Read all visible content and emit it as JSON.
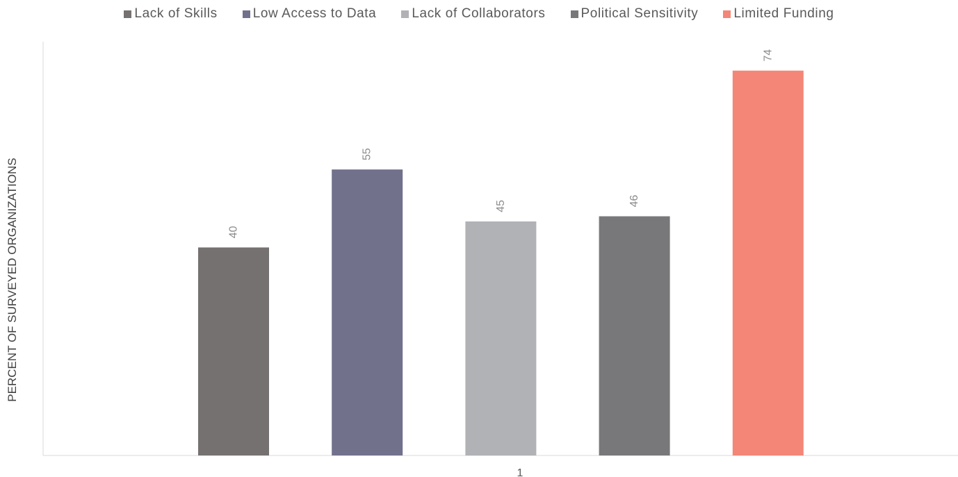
{
  "chart_data": {
    "type": "bar",
    "categories": [
      "1"
    ],
    "series": [
      {
        "name": "Lack of Skills",
        "values": [
          40
        ],
        "color": "#757170"
      },
      {
        "name": "Low Access to Data",
        "values": [
          55
        ],
        "color": "#72718c"
      },
      {
        "name": "Lack of Collaborators",
        "values": [
          45
        ],
        "color": "#b1b2b6"
      },
      {
        "name": "Political Sensitivity",
        "values": [
          46
        ],
        "color": "#78787b"
      },
      {
        "name": "Limited Funding",
        "values": [
          74
        ],
        "color": "#f38677"
      }
    ],
    "title": "",
    "xlabel": "",
    "ylabel": "PERCENT OF SURVEYED ORGANIZATIONS",
    "ylim": [
      0,
      80
    ],
    "grid": false,
    "legend_position": "top",
    "data_labels": true
  }
}
